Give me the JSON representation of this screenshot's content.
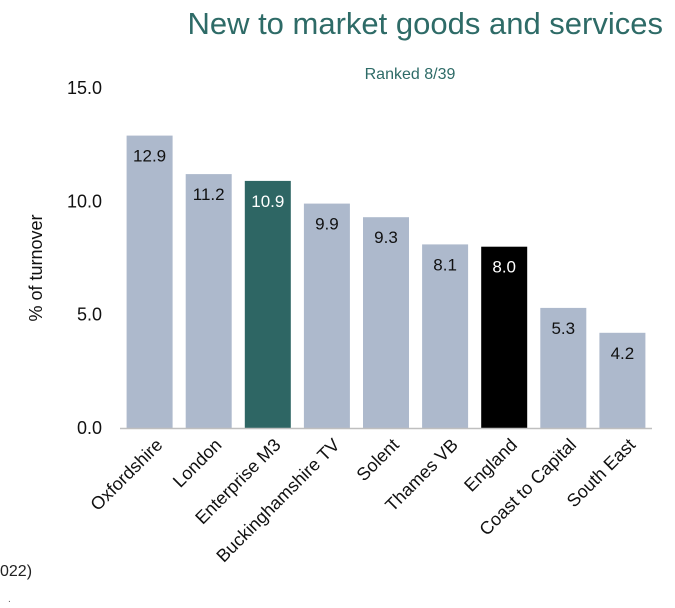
{
  "chart_data": {
    "type": "bar",
    "title": "New to market goods and services",
    "subtitle": "Ranked 8/39",
    "ylabel": "% of turnover",
    "xlabel": "",
    "ylim": [
      0,
      15
    ],
    "yticks": [
      "0.0",
      "5.0",
      "10.0",
      "15.0"
    ],
    "ytick_values": [
      0,
      5,
      10,
      15
    ],
    "categories": [
      "Oxfordshire",
      "London",
      "Enterprise M3",
      "Buckinghamshire TV",
      "Solent",
      "Thames VB",
      "England",
      "Coast to Capital",
      "South East"
    ],
    "values": [
      12.9,
      11.2,
      10.9,
      9.9,
      9.3,
      8.1,
      8.0,
      5.3,
      4.2
    ],
    "value_labels": [
      "12.9",
      "11.2",
      "10.9",
      "9.9",
      "9.3",
      "8.1",
      "8.0",
      "5.3",
      "4.2"
    ],
    "bar_colors": [
      "#adb9cc",
      "#adb9cc",
      "#2e6664",
      "#adb9cc",
      "#adb9cc",
      "#adb9cc",
      "#000000",
      "#adb9cc",
      "#adb9cc"
    ],
    "label_colors": [
      "#111111",
      "#111111",
      "#ffffff",
      "#111111",
      "#111111",
      "#111111",
      "#ffffff",
      "#111111",
      "#111111"
    ],
    "grid": false,
    "legend": "none"
  },
  "footnote": {
    "text": "022)",
    "mark": "."
  },
  "colors": {
    "title": "#2e6b67",
    "highlight": "#2e6664",
    "comparator": "#000000",
    "default_bar": "#adb9cc",
    "axis": "#bfbfbf"
  }
}
